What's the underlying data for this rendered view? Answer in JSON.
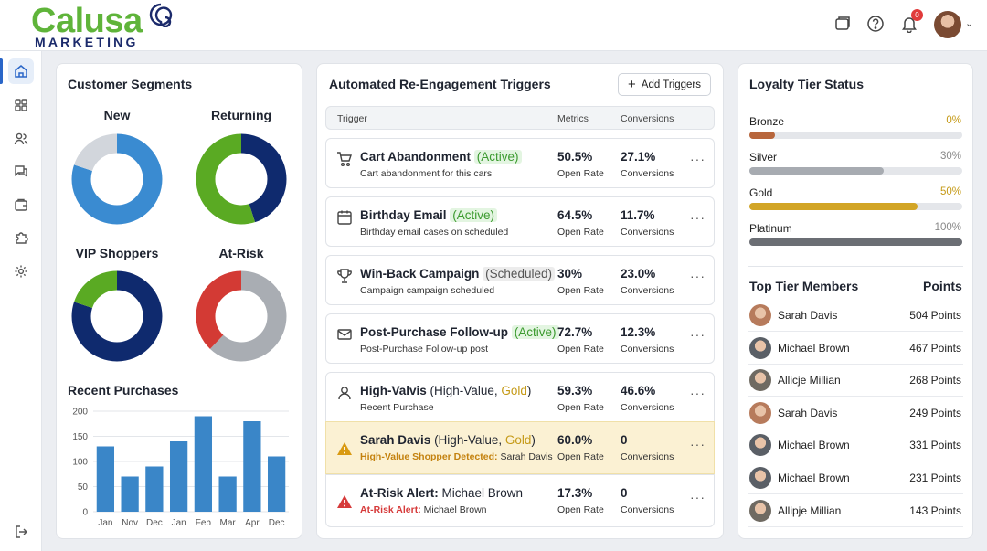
{
  "brand": {
    "name": "Calusa",
    "tagline": "MARKETING"
  },
  "header": {
    "notifications": "0"
  },
  "segments": {
    "title": "Customer Segments",
    "donuts": [
      {
        "label": "New",
        "parts": [
          {
            "value": 80,
            "color": "#3a8bd1"
          },
          {
            "value": 20,
            "color": "#d2d6dc"
          }
        ]
      },
      {
        "label": "Returning",
        "parts": [
          {
            "value": 45,
            "color": "#0f2a6e"
          },
          {
            "value": 55,
            "color": "#5aaa23"
          }
        ]
      },
      {
        "label": "VIP Shoppers",
        "parts": [
          {
            "value": 80,
            "color": "#0f2a6e"
          },
          {
            "value": 20,
            "color": "#5aaa23"
          }
        ]
      },
      {
        "label": "At-Risk",
        "parts": [
          {
            "value": 62,
            "color": "#a9adb3"
          },
          {
            "value": 38,
            "color": "#d33a34"
          }
        ]
      }
    ]
  },
  "purchases": {
    "title": "Recent Purchases",
    "chart_data": {
      "type": "bar",
      "categories": [
        "Jan",
        "Nov",
        "Dec",
        "Jan",
        "Feb",
        "Mar",
        "Apr",
        "Dec"
      ],
      "values": [
        130,
        70,
        90,
        140,
        190,
        70,
        180,
        110
      ],
      "ylim": [
        0,
        200
      ],
      "yticks": [
        0,
        50,
        100,
        150,
        200
      ],
      "color": "#3a86c8"
    }
  },
  "triggers": {
    "title": "Automated Re-Engagement Triggers",
    "add_label": "Add Triggers",
    "columns": {
      "trigger": "Trigger",
      "metrics": "Metrics",
      "conversions": "Conversions"
    },
    "rows": [
      {
        "icon": "cart-icon",
        "name": "Cart Abandonment",
        "tag": "(Active)",
        "sub": "Cart abandonment for this cars",
        "metric": "50.5%",
        "metric_label": "Open Rate",
        "conv": "27.1%",
        "conv_label": "Conversions"
      },
      {
        "icon": "calendar-icon",
        "name": "Birthday Email",
        "tag": "(Active)",
        "sub": "Birthday email cases on scheduled",
        "metric": "64.5%",
        "metric_label": "Open Rate",
        "conv": "11.7%",
        "conv_label": "Conversions"
      },
      {
        "icon": "trophy-icon",
        "name": "Win-Back Campaign",
        "tag": "(Scheduled)",
        "sub": "Campaign campaign scheduled",
        "metric": "30%",
        "metric_label": "Open Rate",
        "conv": "23.0%",
        "conv_label": "Conversions"
      },
      {
        "icon": "mail-icon",
        "name": "Post-Purchase Follow-up",
        "tag": "(Active)",
        "sub": "Post-Purchase Follow-up post",
        "metric": "72.7%",
        "metric_label": "Open Rate",
        "conv": "12.3%",
        "conv_label": "Conversions"
      },
      {
        "icon": "user-icon",
        "name": "High-Valvis",
        "tag_pre": "(High-Value,",
        "tag_gold": "Gold",
        "tag_post": ")",
        "sub": "Recent Purchase",
        "metric": "59.3%",
        "metric_label": "Open Rate",
        "conv": "46.6%",
        "conv_label": "Conversions"
      },
      {
        "icon": "warning-icon",
        "name": "Sarah Davis",
        "tag_pre": "(High-Value,",
        "tag_gold": "Gold",
        "tag_post": ")",
        "sub_label": "High-Value Shopper Detected:",
        "sub_value": "Sarah Davis",
        "metric": "60.0%",
        "metric_label": "Open Rate",
        "conv": "0",
        "conv_label": "Conversions"
      },
      {
        "icon": "alert-icon",
        "name": "At-Risk Alert:",
        "name_rest": "Michael Brown",
        "sub_label": "At-Risk Alert:",
        "sub_value": "Michael Brown",
        "metric": "17.3%",
        "metric_label": "Open Rate",
        "conv": "0",
        "conv_label": "Conversions"
      }
    ]
  },
  "loyalty": {
    "title": "Loyalty Tier Status",
    "tiers": [
      {
        "name": "Bronze",
        "pct": "0%",
        "fraction": 0.12,
        "color": "#b8663c",
        "pct_color": "#c59a17"
      },
      {
        "name": "Silver",
        "pct": "30%",
        "fraction": 0.63,
        "color": "#a7abb1",
        "pct_color": "#888888"
      },
      {
        "name": "Gold",
        "pct": "50%",
        "fraction": 0.79,
        "color": "#d2a526",
        "pct_color": "#c59a17"
      },
      {
        "name": "Platinum",
        "pct": "100%",
        "fraction": 1.0,
        "color": "#6b6e74",
        "pct_color": "#888888"
      }
    ],
    "members_title": "Top Tier Members",
    "points_title": "Points",
    "members": [
      {
        "name": "Sarah Davis",
        "points": "504 Points",
        "avatar": "#b77b5c"
      },
      {
        "name": "Michael Brown",
        "points": "467 Points",
        "avatar": "#5a5f66"
      },
      {
        "name": "Allicje Millian",
        "points": "268 Points",
        "avatar": "#6f6a62"
      },
      {
        "name": "Sarah Davis",
        "points": "249 Points",
        "avatar": "#b77b5c"
      },
      {
        "name": "Michael Brown",
        "points": "331 Points",
        "avatar": "#5a5f66"
      },
      {
        "name": "Michael Brown",
        "points": "231 Points",
        "avatar": "#5a5f66"
      },
      {
        "name": "Allipje Millian",
        "points": "143 Points",
        "avatar": "#6f6a62"
      }
    ]
  }
}
